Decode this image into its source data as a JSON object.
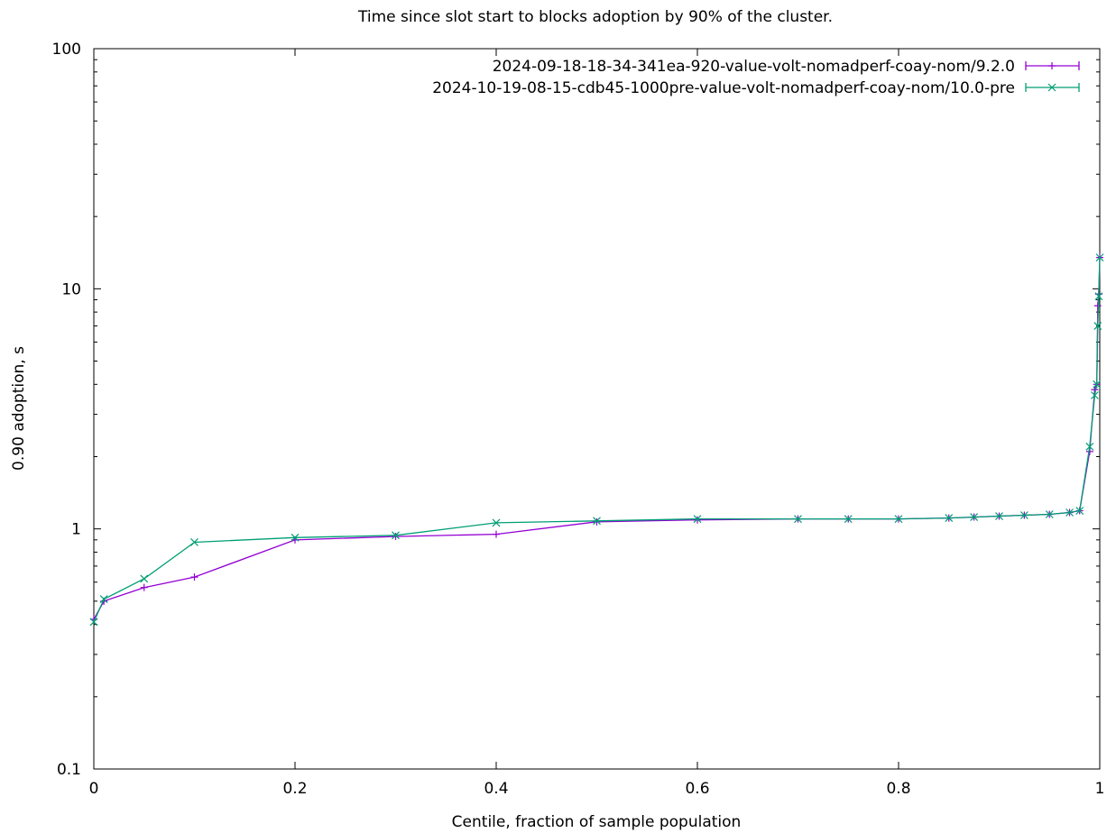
{
  "chart_data": {
    "type": "line",
    "title": "Time since slot start to blocks adoption by 90% of the cluster.",
    "xlabel": "Centile, fraction of sample population",
    "ylabel": "0.90 adoption, s",
    "xlim": [
      0,
      1
    ],
    "ylim": [
      0.1,
      100
    ],
    "yscale": "log",
    "grid": false,
    "legend_position": "top-right",
    "x_ticks": [
      "0",
      "0.2",
      "0.4",
      "0.6",
      "0.8",
      "1"
    ],
    "y_ticks": [
      "0.1",
      "1",
      "10",
      "100"
    ],
    "x": [
      0.0,
      0.01,
      0.05,
      0.1,
      0.2,
      0.3,
      0.4,
      0.5,
      0.6,
      0.7,
      0.75,
      0.8,
      0.85,
      0.875,
      0.9,
      0.925,
      0.95,
      0.97,
      0.98,
      0.99,
      0.995,
      0.997,
      0.998,
      0.999,
      1.0
    ],
    "series": [
      {
        "name": "2024-09-18-18-34-341ea-920-value-volt-nomadperf-coay-nom/9.2.0",
        "color": "#9400d3",
        "marker": "plus",
        "values": [
          0.42,
          0.5,
          0.57,
          0.63,
          0.9,
          0.93,
          0.95,
          1.07,
          1.09,
          1.1,
          1.1,
          1.1,
          1.11,
          1.12,
          1.13,
          1.14,
          1.15,
          1.17,
          1.19,
          2.1,
          3.8,
          4.0,
          8.5,
          9.5,
          13.5
        ]
      },
      {
        "name": "2024-10-19-08-15-cdb45-1000pre-value-volt-nomadperf-coay-nom/10.0-pre",
        "color": "#009e73",
        "marker": "cross",
        "values": [
          0.41,
          0.51,
          0.62,
          0.88,
          0.92,
          0.94,
          1.06,
          1.08,
          1.1,
          1.1,
          1.1,
          1.1,
          1.11,
          1.12,
          1.13,
          1.14,
          1.15,
          1.17,
          1.19,
          2.2,
          3.6,
          4.0,
          7.0,
          9.3,
          13.5
        ]
      }
    ]
  }
}
